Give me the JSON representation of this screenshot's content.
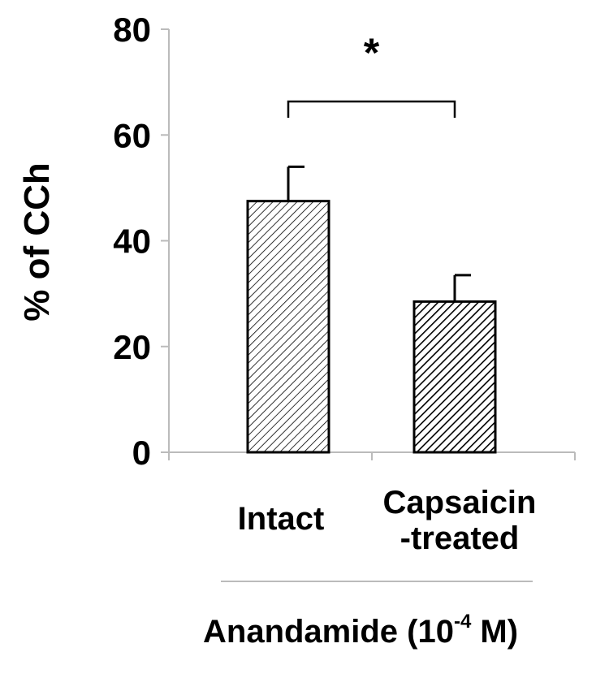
{
  "chart_data": {
    "type": "bar",
    "categories": [
      "Intact",
      "Capsaicin-treated"
    ],
    "category_lines": [
      [
        "Intact"
      ],
      [
        "Capsaicin",
        "-treated"
      ]
    ],
    "series": [
      {
        "values": [
          47.5,
          28.5
        ],
        "errors": [
          6.5,
          5.0
        ]
      }
    ],
    "patterns": [
      "light-diagonal-hatch",
      "dense-diagonal-hatch"
    ],
    "ylabel": "% of CCh",
    "ylim": [
      0,
      80
    ],
    "yticks": [
      0,
      20,
      40,
      60,
      80
    ],
    "group_label": {
      "text": "Anandamide (10",
      "sup": "-4",
      "suffix": " M)"
    },
    "significance": {
      "marker": "*",
      "between": [
        0,
        1
      ]
    },
    "colors": {
      "bar_stroke": "#000000",
      "hatch": "#000000",
      "axis": "#bbbbbb",
      "bracket": "#000000",
      "group_line": "#bbbbbb"
    },
    "grid": false
  }
}
